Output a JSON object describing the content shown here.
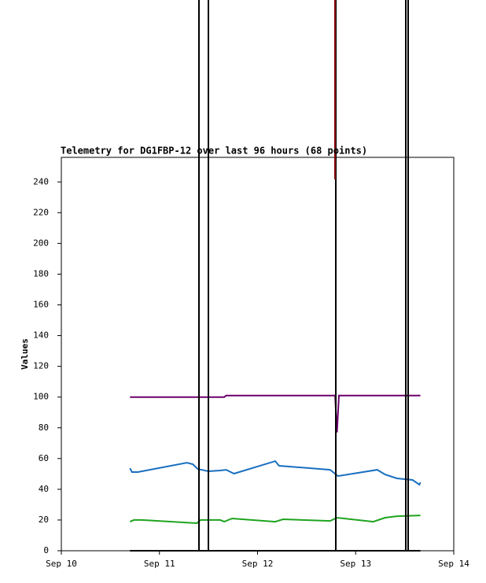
{
  "chart_data": {
    "type": "line",
    "title": "Telemetry for DG1FBP-12 over last 96 hours (68 points)",
    "y_label": "Values",
    "xlim": [
      10,
      14
    ],
    "xticks": [
      {
        "value": 10,
        "label": "Sep 10"
      },
      {
        "value": 11,
        "label": "Sep 11"
      },
      {
        "value": 12,
        "label": "Sep 12"
      },
      {
        "value": 13,
        "label": "Sep 13"
      },
      {
        "value": 14,
        "label": "Sep 14"
      }
    ],
    "ylim": [
      0,
      256
    ],
    "yticks": [
      0,
      20,
      40,
      60,
      80,
      100,
      120,
      140,
      160,
      180,
      200,
      220,
      240
    ],
    "series": [
      {
        "color": "#6b006b",
        "x": [
          10.7,
          11.38,
          11.66,
          11.68,
          12.79,
          12.81,
          12.83,
          13.66
        ],
        "values": [
          100,
          100,
          100,
          101,
          101,
          77,
          101,
          101
        ]
      },
      {
        "color": "#1a6fc0",
        "x": [
          10.7,
          10.72,
          10.78,
          11.28,
          11.34,
          11.39,
          11.5,
          11.62,
          11.68,
          11.76,
          12.18,
          12.22,
          12.74,
          12.8,
          12.82,
          13.22,
          13.3,
          13.42,
          13.58,
          13.65,
          13.66
        ],
        "values": [
          53.7,
          51.2,
          51.2,
          57.3,
          56.3,
          53.2,
          51.7,
          52.2,
          52.7,
          50.2,
          58.3,
          55.3,
          52.7,
          49.6,
          48.6,
          52.7,
          49.6,
          47.1,
          46.1,
          43,
          44.5
        ]
      },
      {
        "color": "#1fa31f",
        "x": [
          10.7,
          10.74,
          10.82,
          11.38,
          11.42,
          11.62,
          11.66,
          11.74,
          12.18,
          12.26,
          12.74,
          12.81,
          13.18,
          13.3,
          13.42,
          13.66
        ],
        "values": [
          18.9,
          20,
          20,
          17.9,
          20,
          20,
          18.9,
          21,
          18.9,
          20.5,
          19.4,
          21.5,
          18.9,
          21.5,
          22.5,
          23
        ]
      },
      {
        "color": "#000000",
        "x": [
          10.7,
          13.66
        ],
        "values": [
          0,
          0
        ]
      }
    ]
  }
}
